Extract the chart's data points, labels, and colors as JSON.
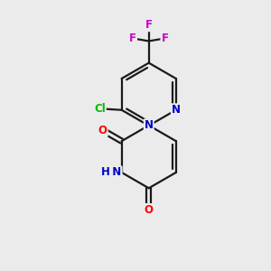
{
  "background_color": "#ebebeb",
  "atom_colors": {
    "C": "#000000",
    "N": "#0000cc",
    "O": "#ff0000",
    "Cl": "#00bb00",
    "F": "#cc00cc",
    "H": "#555555"
  },
  "bond_color": "#1a1a1a",
  "bond_width": 1.6,
  "figsize": [
    3.0,
    3.0
  ],
  "dpi": 100
}
